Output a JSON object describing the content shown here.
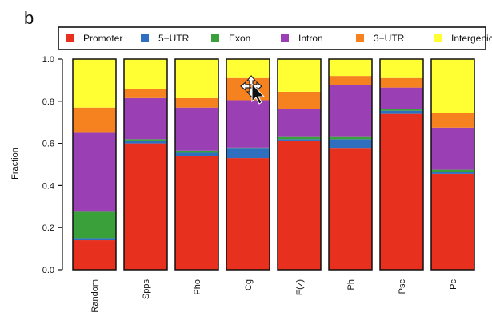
{
  "panel_label": "b",
  "cursor_icon": "move-cursor-icon",
  "chart_data": {
    "type": "bar",
    "stacked": true,
    "ylabel": "Fraction",
    "ylim": [
      0,
      1
    ],
    "yticks": [
      "0.0",
      "0.2",
      "0.4",
      "0.6",
      "0.8",
      "1.0"
    ],
    "legend_position": "top",
    "categories": [
      "Random",
      "Spps",
      "Pho",
      "Cg",
      "E(z)",
      "Ph",
      "Psc",
      "Pc"
    ],
    "series": [
      {
        "name": "Promoter",
        "color": "#e8301e",
        "values": [
          0.14,
          0.6,
          0.54,
          0.53,
          0.61,
          0.575,
          0.74,
          0.455
        ]
      },
      {
        "name": "5−UTR",
        "color": "#2e6fbf",
        "values": [
          0.01,
          0.01,
          0.015,
          0.045,
          0.01,
          0.045,
          0.015,
          0.01
        ]
      },
      {
        "name": "Exon",
        "color": "#3aa13a",
        "values": [
          0.125,
          0.01,
          0.01,
          0.005,
          0.01,
          0.01,
          0.01,
          0.01
        ]
      },
      {
        "name": "Intron",
        "color": "#9b3fb5",
        "values": [
          0.375,
          0.195,
          0.205,
          0.225,
          0.135,
          0.245,
          0.1,
          0.2
        ]
      },
      {
        "name": "3−UTR",
        "color": "#f5821f",
        "values": [
          0.12,
          0.045,
          0.045,
          0.105,
          0.08,
          0.045,
          0.045,
          0.07
        ]
      },
      {
        "name": "Intergenic",
        "color": "#ffff33",
        "values": [
          0.23,
          0.14,
          0.185,
          0.09,
          0.155,
          0.08,
          0.09,
          0.255
        ]
      }
    ]
  }
}
